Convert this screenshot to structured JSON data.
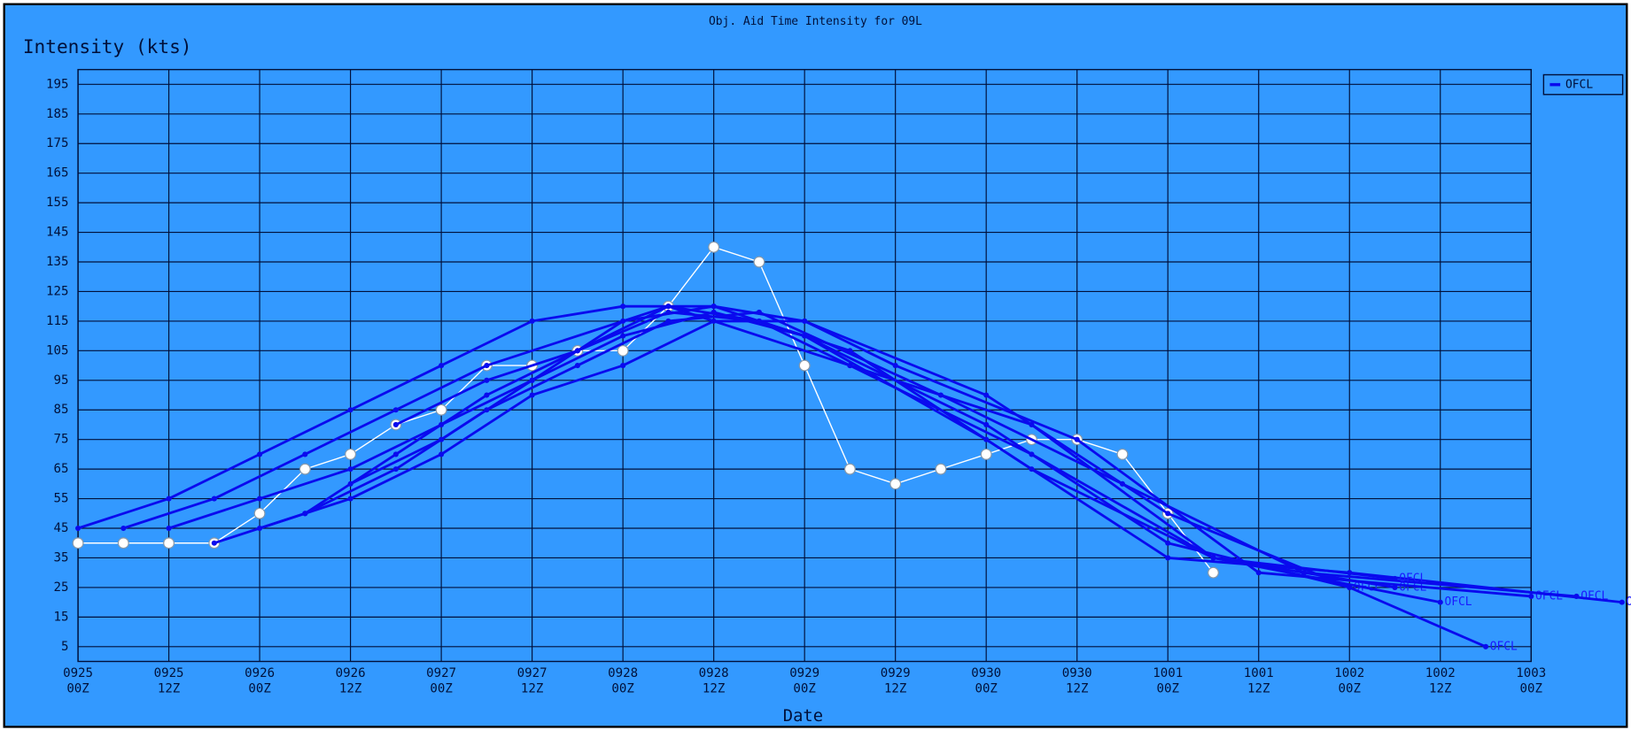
{
  "chart_data": {
    "type": "line",
    "title": "Obj. Aid Time Intensity for 09L",
    "y_label": "Intensity (kts)",
    "x_label": "Date",
    "xlim": [
      0,
      192
    ],
    "ylim": [
      0,
      200
    ],
    "xticks": [
      {
        "value": 0,
        "label": "0925\n00Z"
      },
      {
        "value": 12,
        "label": "0925\n12Z"
      },
      {
        "value": 24,
        "label": "0926\n00Z"
      },
      {
        "value": 36,
        "label": "0926\n12Z"
      },
      {
        "value": 48,
        "label": "0927\n00Z"
      },
      {
        "value": 60,
        "label": "0927\n12Z"
      },
      {
        "value": 72,
        "label": "0928\n00Z"
      },
      {
        "value": 84,
        "label": "0928\n12Z"
      },
      {
        "value": 96,
        "label": "0929\n00Z"
      },
      {
        "value": 108,
        "label": "0929\n12Z"
      },
      {
        "value": 120,
        "label": "0930\n00Z"
      },
      {
        "value": 132,
        "label": "0930\n12Z"
      },
      {
        "value": 144,
        "label": "1001\n00Z"
      },
      {
        "value": 156,
        "label": "1001\n12Z"
      },
      {
        "value": 168,
        "label": "1002\n00Z"
      },
      {
        "value": 180,
        "label": "1002\n12Z"
      },
      {
        "value": 192,
        "label": "1003\n00Z"
      }
    ],
    "yticks": [
      5,
      15,
      25,
      35,
      45,
      55,
      65,
      75,
      85,
      95,
      105,
      115,
      125,
      135,
      145,
      155,
      165,
      175,
      185,
      195
    ],
    "grid": true,
    "legend": "upper right outside",
    "series": [
      {
        "color": "#ffffff",
        "marker": "circle",
        "x": [
          0,
          6,
          12,
          18,
          24,
          30,
          36,
          42,
          48,
          54,
          60,
          66,
          72,
          78,
          84,
          90,
          96,
          102,
          108,
          114,
          120,
          126,
          132,
          138,
          144,
          150
        ],
        "values": [
          40,
          40,
          40,
          40,
          50,
          65,
          70,
          80,
          85,
          100,
          100,
          105,
          105,
          120,
          140,
          135,
          100,
          65,
          60,
          65,
          70,
          75,
          75,
          70,
          50,
          30
        ]
      },
      {
        "name": "OFCL",
        "color": "#0a0aee",
        "marker": "dot",
        "x": [
          0,
          12,
          24,
          36,
          48,
          60,
          72,
          84,
          96,
          120,
          144,
          168
        ],
        "values": [
          45,
          55,
          70,
          85,
          100,
          115,
          120,
          120,
          110,
          80,
          40,
          25
        ]
      },
      {
        "name": "OFCL",
        "color": "#0a0aee",
        "marker": "dot",
        "x": [
          6,
          18,
          30,
          42,
          54,
          78,
          102,
          126,
          150,
          174
        ],
        "values": [
          45,
          55,
          70,
          85,
          100,
          120,
          100,
          80,
          35,
          25
        ]
      },
      {
        "name": "OFCL",
        "color": "#0a0aee",
        "marker": "dot",
        "x": [
          12,
          24,
          36,
          48,
          60,
          72,
          84,
          96,
          120,
          144,
          168,
          186
        ],
        "values": [
          45,
          55,
          65,
          80,
          95,
          115,
          120,
          115,
          90,
          50,
          25,
          5
        ]
      },
      {
        "name": "OFCL",
        "color": "#0a0aee",
        "marker": "dot",
        "x": [
          18,
          30,
          42,
          54,
          66,
          78,
          90,
          102,
          126,
          150,
          180
        ],
        "values": [
          40,
          50,
          70,
          90,
          105,
          120,
          115,
          100,
          70,
          35,
          20
        ]
      },
      {
        "name": "OFCL",
        "color": "#0a0aee",
        "marker": "dot",
        "x": [
          24,
          36,
          48,
          60,
          72,
          84,
          96,
          108,
          132,
          156,
          192
        ],
        "values": [
          45,
          55,
          70,
          90,
          100,
          115,
          115,
          100,
          75,
          30,
          22
        ]
      },
      {
        "name": "OFCL",
        "color": "#0a0aee",
        "marker": "dot",
        "x": [
          30,
          42,
          54,
          66,
          78,
          90,
          114,
          138,
          162,
          198
        ],
        "values": [
          50,
          65,
          85,
          100,
          115,
          118,
          90,
          60,
          30,
          22
        ]
      },
      {
        "name": "OFCL",
        "color": "#0a0aee",
        "marker": "dot",
        "x": [
          36,
          48,
          60,
          72,
          84,
          96,
          120,
          144,
          168,
          204
        ],
        "values": [
          60,
          75,
          95,
          110,
          118,
          110,
          75,
          35,
          30,
          20
        ]
      },
      {
        "name": "OFCL",
        "color": "#0a0aee",
        "marker": "dot",
        "x": [
          42,
          54,
          66,
          78,
          90,
          102,
          126,
          150,
          174
        ],
        "values": [
          80,
          95,
          105,
          118,
          115,
          105,
          65,
          35,
          28
        ]
      }
    ]
  }
}
